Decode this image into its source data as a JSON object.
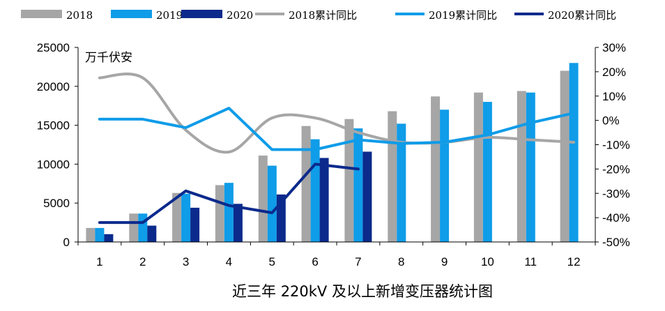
{
  "chart_data": {
    "type": "bar",
    "title": "近三年 220kV 及以上新增变压器统计图",
    "unit_label": "万千伏安",
    "categories": [
      "1",
      "2",
      "3",
      "4",
      "5",
      "6",
      "7",
      "8",
      "9",
      "10",
      "11",
      "12"
    ],
    "y_left": {
      "min": 0,
      "max": 25000,
      "ticks": [
        "0",
        "5000",
        "10000",
        "15000",
        "20000",
        "25000"
      ]
    },
    "y_right": {
      "min": -50,
      "max": 30,
      "ticks": [
        "-50%",
        "-40%",
        "-30%",
        "-20%",
        "-10%",
        "0%",
        "10%",
        "20%",
        "30%"
      ]
    },
    "bar_series": [
      {
        "name": "2018",
        "color": "#a6a6a6",
        "values": [
          1800,
          3650,
          6300,
          7300,
          11100,
          14900,
          15800,
          16800,
          18700,
          19200,
          19400,
          22000
        ]
      },
      {
        "name": "2019",
        "color": "#0f9ce8",
        "values": [
          1800,
          3650,
          6200,
          7600,
          9800,
          13200,
          14600,
          15200,
          17000,
          18000,
          19200,
          23000
        ]
      },
      {
        "name": "2020",
        "color": "#0b2a8c",
        "values": [
          1000,
          2100,
          4400,
          4900,
          6100,
          10800,
          11600
        ]
      }
    ],
    "line_series": [
      {
        "name": "2018累计同比",
        "color": "#a6a6a6",
        "values": [
          17.5,
          17.5,
          -4,
          -13,
          1,
          1,
          -5,
          -9,
          -9,
          -7,
          -8,
          -9
        ]
      },
      {
        "name": "2019累计同比",
        "color": "#0f9ce8",
        "values": [
          0.5,
          0.5,
          -3,
          5,
          -12,
          -12,
          -8,
          -9.5,
          -9,
          -6,
          -1,
          3
        ]
      },
      {
        "name": "2020累计同比",
        "color": "#0b2a8c",
        "values": [
          -42,
          -42,
          -29,
          -35,
          -38,
          -18,
          -20
        ]
      }
    ],
    "legend": [
      {
        "label": "2018",
        "kind": "bar",
        "color": "#a6a6a6"
      },
      {
        "label": "2019",
        "kind": "bar",
        "color": "#0f9ce8"
      },
      {
        "label": "2020",
        "kind": "bar",
        "color": "#0b2a8c"
      },
      {
        "label": "2018累计同比",
        "kind": "line",
        "color": "#a6a6a6"
      },
      {
        "label": "2019累计同比",
        "kind": "line",
        "color": "#0f9ce8"
      },
      {
        "label": "2020累计同比",
        "kind": "line",
        "color": "#0b2a8c"
      }
    ],
    "legend_position": "top",
    "grid": false
  }
}
